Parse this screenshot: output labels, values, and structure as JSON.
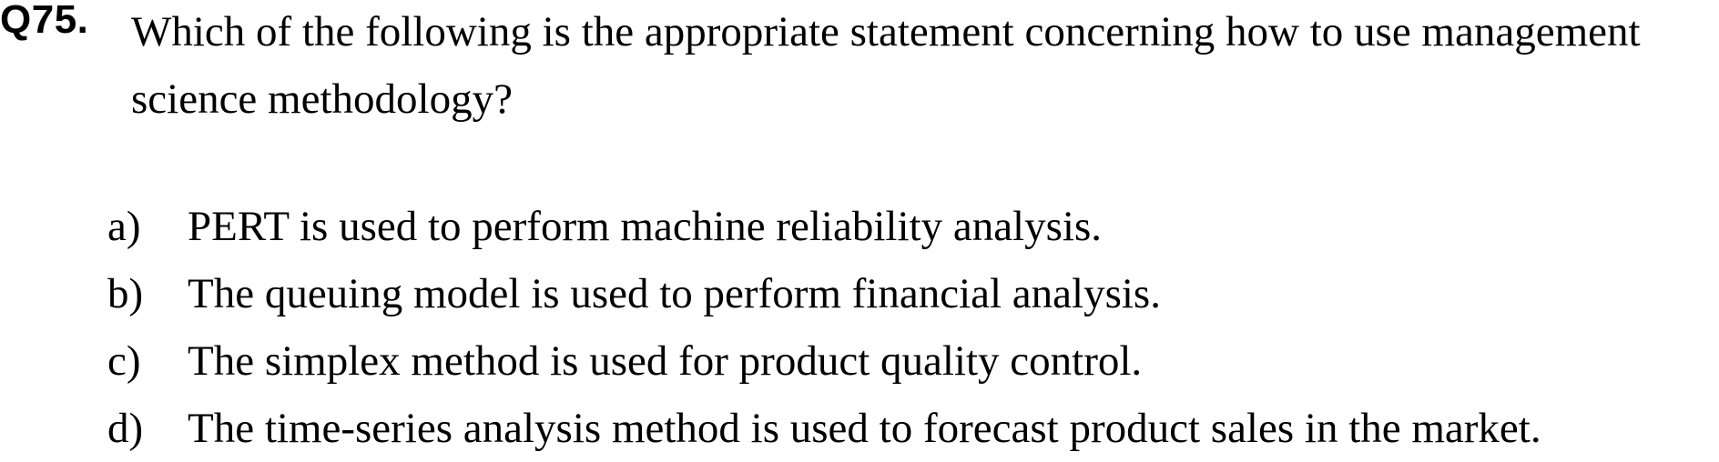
{
  "question": {
    "number": "Q75.",
    "text_line1": "Which of the following is the appropriate statement concerning how to use management",
    "text_line2": "science methodology?"
  },
  "options": [
    {
      "letter": "a)",
      "text": "PERT is used to perform machine reliability analysis."
    },
    {
      "letter": "b)",
      "text": "The queuing model is used to perform financial analysis."
    },
    {
      "letter": "c)",
      "text": "The simplex method is used for product quality control."
    },
    {
      "letter": "d)",
      "text": "The time-series analysis method is used to forecast product sales in the market."
    }
  ]
}
